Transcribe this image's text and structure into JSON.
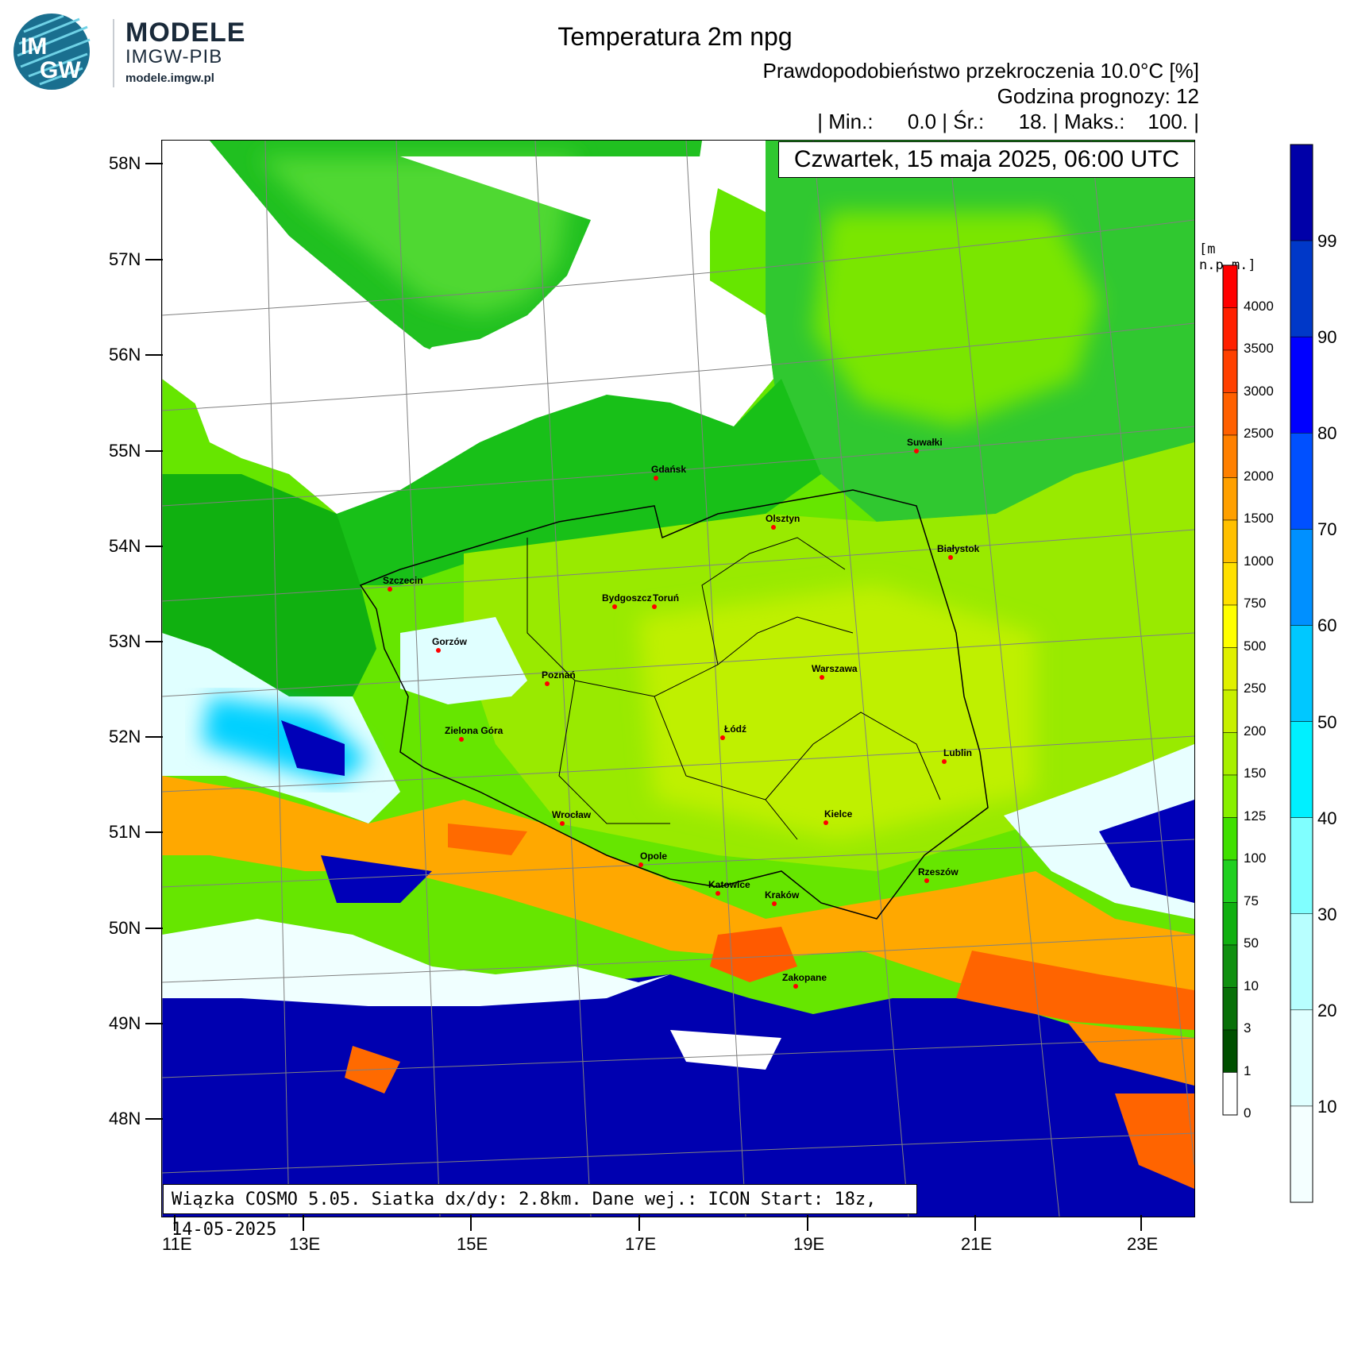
{
  "logo": {
    "badge_top": "IM",
    "badge_bottom": "GW",
    "name": "MODELE",
    "org": "IMGW-PIB",
    "url": "modele.imgw.pl"
  },
  "header": {
    "title": "Temperatura 2m npg",
    "subtitle": "Prawdopodobieństwo przekroczenia 10.0°C [%]",
    "forecast_hour": "Godzina prognozy: 12",
    "stats": "| Min.:      0.0 | Śr.:      18. | Maks.:    100. |"
  },
  "map": {
    "date": "Czwartek, 15 maja 2025, 06:00 UTC",
    "source": "Wiązka COSMO 5.05. Siatka dx/dy: 2.8km. Dane wej.: ICON Start: 18z, 14-05-2025",
    "lat_labels": [
      "58N",
      "57N",
      "56N",
      "55N",
      "54N",
      "53N",
      "52N",
      "51N",
      "50N",
      "49N",
      "48N"
    ],
    "lon_labels": [
      "11E",
      "13E",
      "15E",
      "17E",
      "19E",
      "21E",
      "23E"
    ],
    "cities": [
      "Suwałki",
      "Gdańsk",
      "Olsztyn",
      "Białystok",
      "Szczecin",
      "Bydgoszcz",
      "Toruń",
      "Gorzów",
      "Warszawa",
      "Poznań",
      "Łódź",
      "Zielona Góra",
      "Lublin",
      "Wrocław",
      "Kielce",
      "Opole",
      "Rzeszów",
      "Katowice",
      "Kraków",
      "Zakopane"
    ]
  },
  "elevation_legend": {
    "title": "[m n.p.m.]",
    "labels": [
      "4000",
      "3500",
      "3000",
      "2500",
      "2000",
      "1500",
      "1000",
      "750",
      "500",
      "250",
      "200",
      "150",
      "125",
      "100",
      "75",
      "50",
      "10",
      "3",
      "1",
      "0"
    ],
    "colors": [
      "#ff0000",
      "#ff2000",
      "#ff4000",
      "#ff6000",
      "#ff8000",
      "#ffa000",
      "#ffc000",
      "#ffe000",
      "#ffff00",
      "#e0f000",
      "#c8f000",
      "#a8f000",
      "#88f000",
      "#40e000",
      "#20d020",
      "#10b010",
      "#109010",
      "#087008",
      "#005000",
      "#ffffff"
    ]
  },
  "probability_legend": {
    "labels": [
      "99",
      "90",
      "80",
      "70",
      "60",
      "50",
      "40",
      "30",
      "20",
      "10"
    ],
    "colors": [
      "#0000a8",
      "#0038c8",
      "#0000ff",
      "#0050ff",
      "#0090ff",
      "#00c8ff",
      "#00f0ff",
      "#80ffff",
      "#b8ffff",
      "#e0ffff",
      "#f4ffff"
    ]
  }
}
